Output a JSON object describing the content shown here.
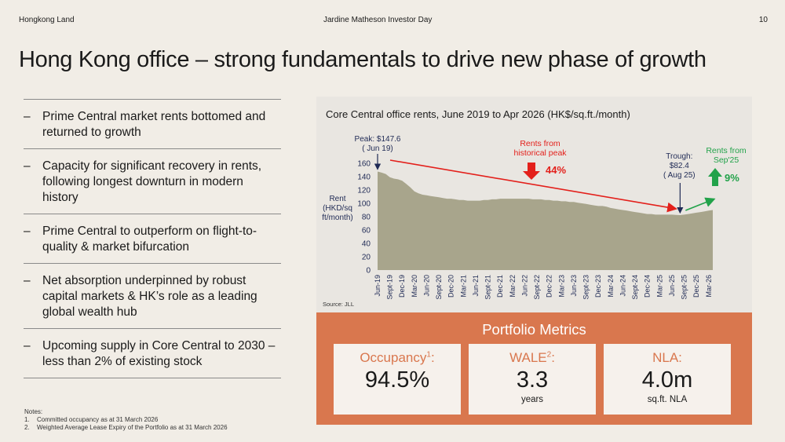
{
  "header": {
    "brand": "Hongkong Land",
    "event": "Jardine Matheson Investor Day",
    "page_number": "10"
  },
  "title": "Hong Kong office – strong fundamentals to drive new phase of growth",
  "bullets": [
    {
      "dash": "–",
      "text": "Prime Central market rents bottomed and returned to growth"
    },
    {
      "dash": "–",
      "text": "Capacity for significant recovery in rents, following longest downturn in modern history"
    },
    {
      "dash": "–",
      "text": "Prime Central to outperform on flight-to-quality & market bifurcation"
    },
    {
      "dash": "–",
      "text": "Net absorption underpinned by robust capital markets & HK’s role as a leading global wealth hub"
    },
    {
      "dash": "–",
      "text": "Upcoming supply in Core Central to 2030 – less than 2% of existing stock"
    }
  ],
  "notes": {
    "heading": "Notes:",
    "items": [
      {
        "num": "1.",
        "text": "Committed occupancy as at 31 March 2026"
      },
      {
        "num": "2.",
        "text": "Weighted Average Lease Expiry of the Portfolio as at 31 March 2026"
      }
    ]
  },
  "chart_data": {
    "type": "area",
    "title": "Core Central office rents, June 2019 to Apr 2026 (HK$/sq.ft./month)",
    "ylabel_lines": [
      "Rent",
      "(HKD/sq",
      "ft/month)"
    ],
    "ylim": [
      0,
      160
    ],
    "yticks": [
      0,
      20,
      40,
      60,
      80,
      100,
      120,
      140,
      160
    ],
    "xlabels": [
      "Jun-19",
      "Sept-19",
      "Dec-19",
      "Mar-20",
      "Jun-20",
      "Sept-20",
      "Dec-20",
      "Mar-21",
      "Jun-21",
      "Sept-21",
      "Dec-21",
      "Mar-22",
      "Jun-22",
      "Sept-22",
      "Dec-22",
      "Mar-23",
      "Jun-23",
      "Sept-23",
      "Dec-23",
      "Mar-24",
      "Jun-24",
      "Sept-24",
      "Dec-24",
      "Mar-25",
      "Jun-25",
      "Sept-25",
      "Dec-25",
      "Mar-26"
    ],
    "x": [
      "Jun-19",
      "Jul-19",
      "Aug-19",
      "Sept-19",
      "Oct-19",
      "Nov-19",
      "Dec-19",
      "Jan-20",
      "Feb-20",
      "Mar-20",
      "Apr-20",
      "May-20",
      "Jun-20",
      "Jul-20",
      "Aug-20",
      "Sept-20",
      "Oct-20",
      "Nov-20",
      "Dec-20",
      "Jan-21",
      "Feb-21",
      "Mar-21",
      "Apr-21",
      "May-21",
      "Jun-21",
      "Jul-21",
      "Aug-21",
      "Sept-21",
      "Oct-21",
      "Nov-21",
      "Dec-21",
      "Jan-22",
      "Feb-22",
      "Mar-22",
      "Apr-22",
      "May-22",
      "Jun-22",
      "Jul-22",
      "Aug-22",
      "Sept-22",
      "Oct-22",
      "Nov-22",
      "Dec-22",
      "Jan-23",
      "Feb-23",
      "Mar-23",
      "Apr-23",
      "May-23",
      "Jun-23",
      "Jul-23",
      "Aug-23",
      "Sept-23",
      "Oct-23",
      "Nov-23",
      "Dec-23",
      "Jan-24",
      "Feb-24",
      "Mar-24",
      "Apr-24",
      "May-24",
      "Jun-24",
      "Jul-24",
      "Aug-24",
      "Sept-24",
      "Oct-24",
      "Nov-24",
      "Dec-24",
      "Jan-25",
      "Feb-25",
      "Mar-25",
      "Apr-25",
      "May-25",
      "Jun-25",
      "Jul-25",
      "Aug-25",
      "Sept-25",
      "Oct-25",
      "Nov-25",
      "Dec-25",
      "Jan-26",
      "Feb-26",
      "Mar-26",
      "Apr-26"
    ],
    "values": [
      147.6,
      146,
      144,
      139,
      137,
      136,
      134,
      129,
      124,
      118,
      115,
      113,
      112,
      111,
      110,
      109,
      108,
      107,
      107,
      106,
      105,
      105,
      104,
      104,
      104,
      104,
      105,
      105,
      106,
      106,
      107,
      107,
      107,
      107,
      107,
      107,
      107,
      107,
      106,
      106,
      106,
      105,
      105,
      104,
      104,
      103,
      103,
      102,
      102,
      101,
      100,
      99,
      98,
      97,
      96,
      96,
      95,
      93,
      92,
      91,
      90,
      89,
      88,
      87,
      86,
      85,
      84,
      84,
      83,
      83,
      83,
      83,
      83,
      82.6,
      82.4,
      83,
      84,
      85,
      86,
      87,
      88,
      89,
      90
    ],
    "fill_color": "#a8a58c",
    "source": "Source: JLL",
    "annotations": {
      "peak": {
        "lines": [
          "Peak: $147.6",
          "( Jun 19)"
        ],
        "x": "Jun-19",
        "y": 147.6
      },
      "trough": {
        "lines": [
          "Trough:",
          "$82.4",
          "( Aug 25)"
        ],
        "x": "Aug-25",
        "y": 82.4
      },
      "from_peak": {
        "lines": [
          "Rents from",
          "historical peak"
        ],
        "pct": "44%",
        "color": "#e3201b"
      },
      "from_sep": {
        "lines": [
          "Rents from",
          "Sep'25"
        ],
        "pct": "9%",
        "color": "#22a24a"
      }
    }
  },
  "metrics": {
    "title": "Portfolio Metrics",
    "cards": [
      {
        "label": "Occupancy",
        "sup": "1",
        "colon": ":",
        "value": "94.5%",
        "sub": ""
      },
      {
        "label": "WALE",
        "sup": "2",
        "colon": ":",
        "value": "3.3",
        "sub": "years"
      },
      {
        "label": "NLA",
        "sup": "",
        "colon": ":",
        "value": "4.0m",
        "sub": "sq.ft. NLA"
      }
    ]
  }
}
